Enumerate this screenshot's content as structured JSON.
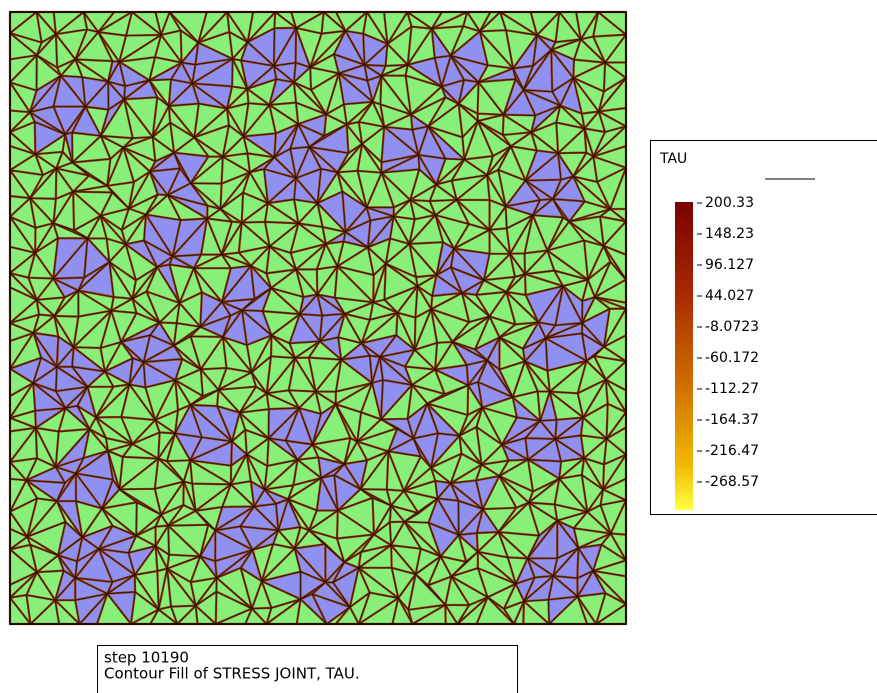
{
  "legend": {
    "title": "TAU",
    "labels": [
      "200.33",
      "148.23",
      "96.127",
      "44.027",
      "-8.0723",
      "-60.172",
      "-112.27",
      "-164.37",
      "-216.47",
      "-268.57"
    ]
  },
  "caption": {
    "lines": [
      "step 10190",
      "Contour Fill of STRESS JOINT, TAU."
    ]
  }
}
